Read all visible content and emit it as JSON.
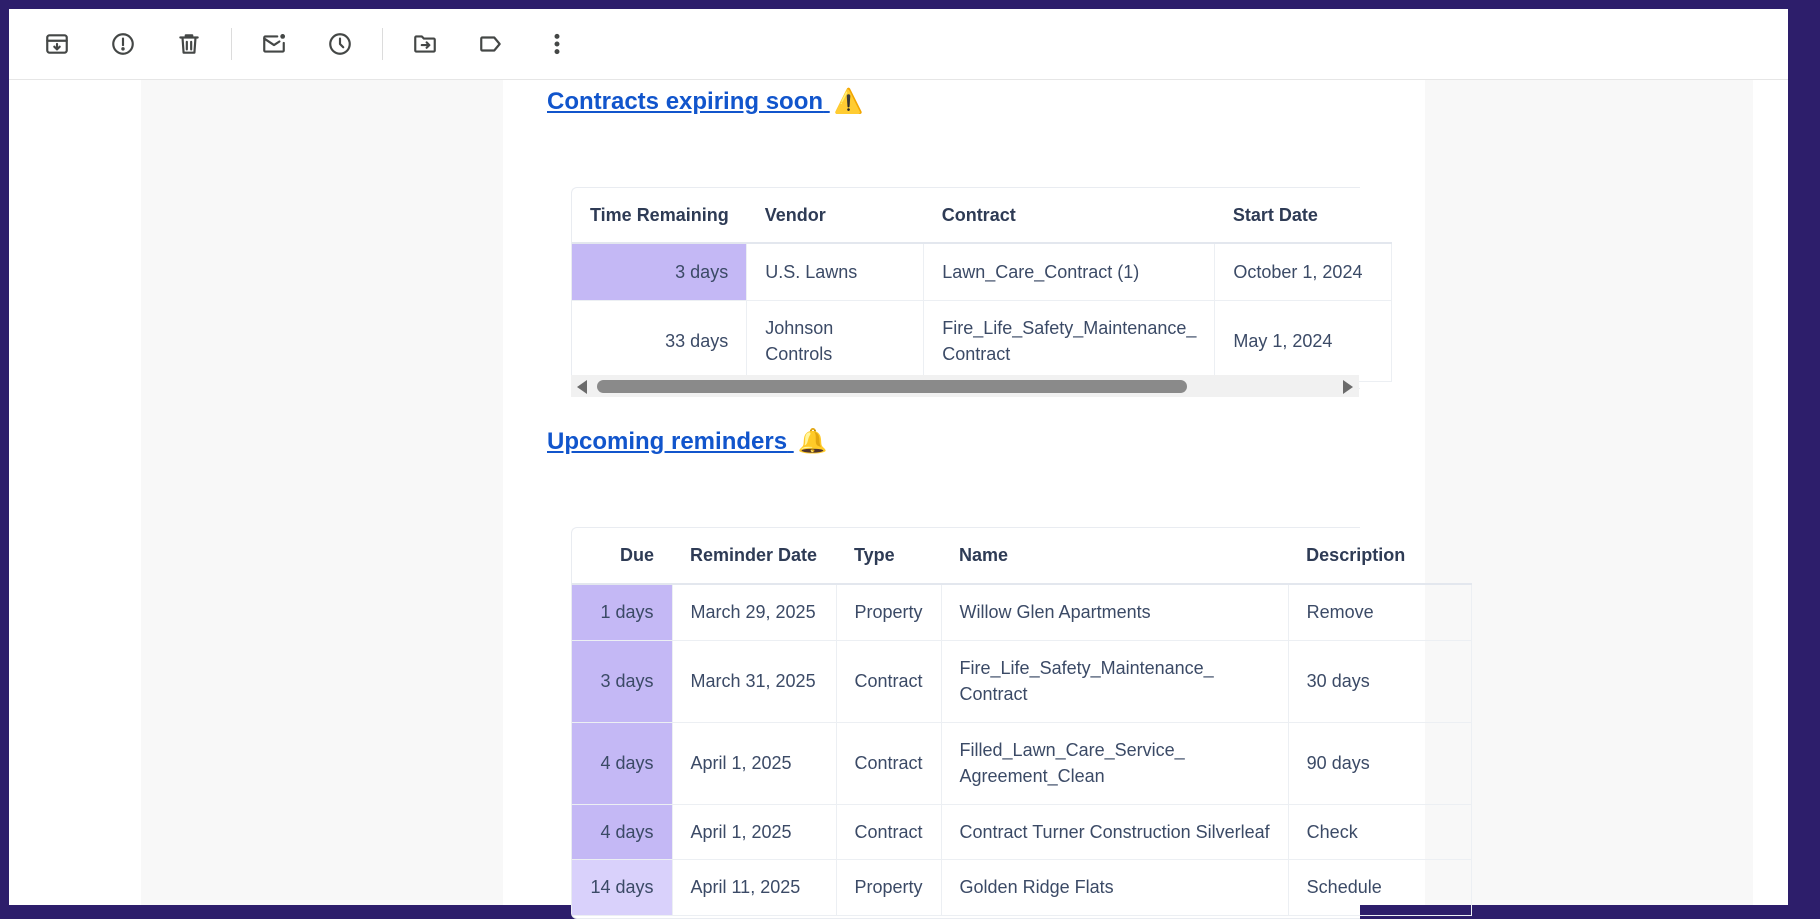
{
  "toolbar": {
    "icons": [
      "archive-icon",
      "report-spam-icon",
      "delete-icon",
      "mark-unread-icon",
      "snooze-icon",
      "move-to-icon",
      "label-icon",
      "more-options-icon"
    ]
  },
  "contracts": {
    "title": "Contracts expiring soon",
    "emoji": "⚠️",
    "headers": [
      "Time Remaining",
      "Vendor",
      "Contract",
      "Start Date"
    ],
    "rows": [
      [
        "3 days",
        "U.S. Lawns",
        "Lawn_Care_Contract (1)",
        "October 1, 2024"
      ],
      [
        "33 days",
        "Johnson Controls",
        "Fire_Life_Safety_Maintenance_ Contract",
        "May 1, 2024"
      ]
    ]
  },
  "reminders": {
    "title": "Upcoming reminders",
    "emoji": "🔔",
    "headers": [
      "Due",
      "Reminder Date",
      "Type",
      "Name",
      "Description"
    ],
    "rows": [
      [
        "1 days",
        "March 29, 2025",
        "Property",
        "Willow Glen Apartments",
        "Remove"
      ],
      [
        "3 days",
        "March 31, 2025",
        "Contract",
        "Fire_Life_Safety_Maintenance_ Contract",
        "30 days"
      ],
      [
        "4 days",
        "April 1, 2025",
        "Contract",
        "Filled_Lawn_Care_Service_ Agreement_Clean",
        "90 days"
      ],
      [
        "4 days",
        "April 1, 2025",
        "Contract",
        "Contract Turner Construction Silverleaf",
        "Check"
      ],
      [
        "14 days",
        "April 11, 2025",
        "Property",
        "Golden Ridge Flats",
        "Schedule"
      ]
    ]
  },
  "colors": {
    "link": "#1155cc",
    "highlight": "#c4b8f5",
    "highlight_light": "#d9d1fb",
    "frame": "#2d1e6b"
  }
}
